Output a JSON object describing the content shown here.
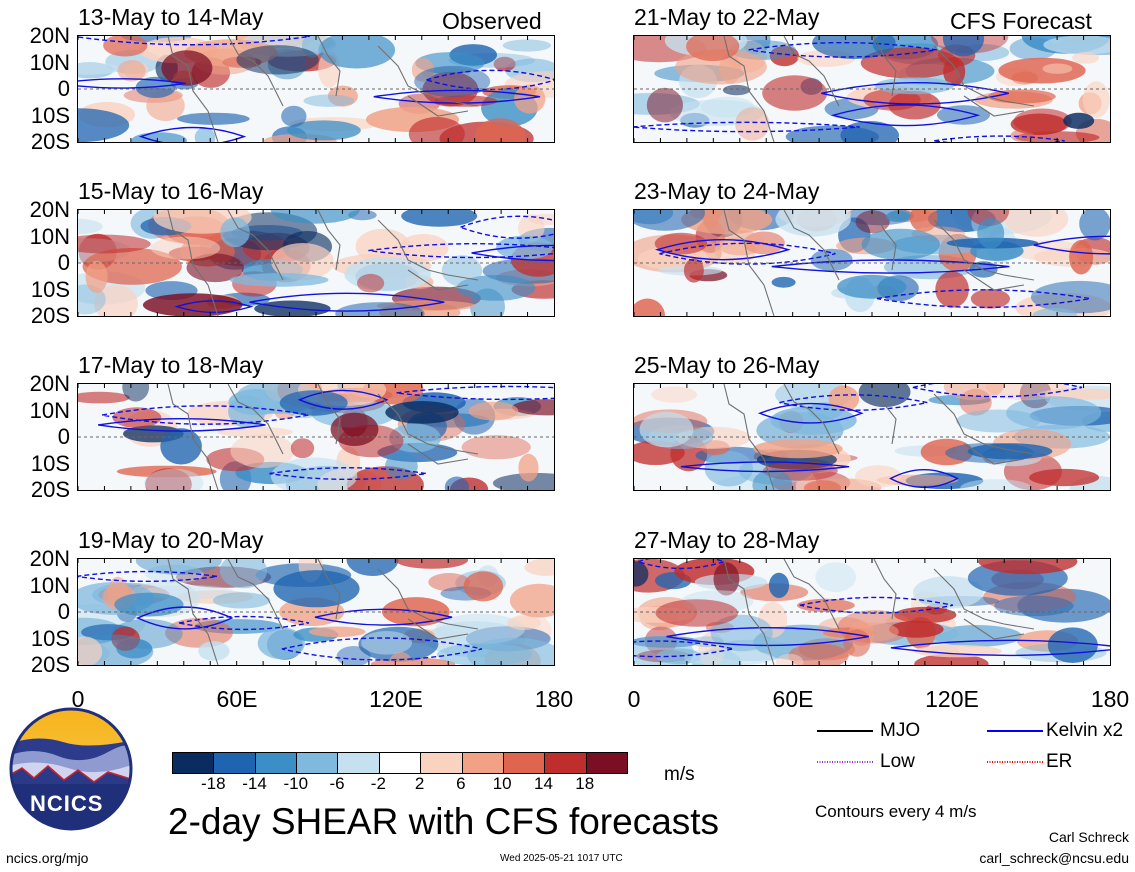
{
  "header": {
    "observed_label": "Observed",
    "forecast_label": "CFS Forecast"
  },
  "panels": {
    "left": [
      {
        "title": "13-May to 14-May"
      },
      {
        "title": "15-May to 16-May"
      },
      {
        "title": "17-May to 18-May"
      },
      {
        "title": "19-May to 20-May"
      }
    ],
    "right": [
      {
        "title": "21-May to 22-May"
      },
      {
        "title": "23-May to 24-May"
      },
      {
        "title": "25-May to 26-May"
      },
      {
        "title": "27-May to 28-May"
      }
    ]
  },
  "axes": {
    "lat_ticks": [
      "20N",
      "10N",
      "0",
      "10S",
      "20S"
    ],
    "lon_ticks": [
      "0",
      "60E",
      "120E",
      "180"
    ]
  },
  "legend": {
    "items": [
      {
        "label": "MJO",
        "color": "#000000",
        "style": "solid"
      },
      {
        "label": "Kelvin x2",
        "color": "#0000ff",
        "style": "solid"
      },
      {
        "label": "Low",
        "color": "#9a30d0",
        "style": "dotted"
      },
      {
        "label": "ER",
        "color": "#ff0000",
        "style": "dotted"
      }
    ],
    "contour_note": "Contours every 4 m/s"
  },
  "colorbar": {
    "labels": [
      "-18",
      "-14",
      "-10",
      "-6",
      "-2",
      "2",
      "6",
      "10",
      "14",
      "18"
    ],
    "colors": [
      "#0a2c60",
      "#1f64b0",
      "#3b8ec6",
      "#7fb9de",
      "#c5e0ef",
      "#ffffff",
      "#fad2c0",
      "#f1a286",
      "#df6550",
      "#c02d2d",
      "#7a0e22"
    ],
    "units": "m/s"
  },
  "main_title": "2-day SHEAR with CFS forecasts",
  "logo": {
    "text": "NCICS"
  },
  "footer": {
    "url": "ncics.org/mjo",
    "timestamp": "Wed 2025-05-21 1017 UTC",
    "author": "Carl Schreck",
    "email": "carl_schreck@ncsu.edu"
  },
  "chart_data": {
    "type": "heatmap",
    "variable": "2-day SHEAR",
    "units": "m/s",
    "x_range": [
      0,
      180
    ],
    "y_range": [
      -20,
      20
    ],
    "color_levels": [
      -18,
      -14,
      -10,
      -6,
      -2,
      2,
      6,
      10,
      14,
      18
    ],
    "contour_interval": 4,
    "panels": [
      "13-May to 14-May",
      "15-May to 16-May",
      "17-May to 18-May",
      "19-May to 20-May",
      "21-May to 22-May",
      "23-May to 24-May",
      "25-May to 26-May",
      "27-May to 28-May"
    ]
  }
}
